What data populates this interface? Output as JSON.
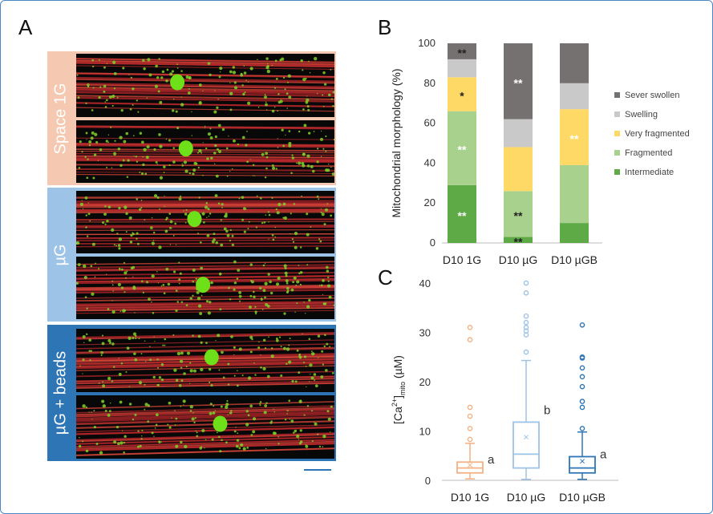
{
  "panels": {
    "a": "A",
    "b": "B",
    "c": "C"
  },
  "groups": [
    {
      "label": "Space 1G",
      "color": "#f5c9b1"
    },
    {
      "label": "µG",
      "color": "#9dc3e6"
    },
    {
      "label": "µG + beads",
      "color": "#2e75b6"
    }
  ],
  "chart_data": [
    {
      "type": "bar",
      "stacked": true,
      "ylabel": "Mitochondrial morphology (%)",
      "ylim": [
        0,
        100
      ],
      "yticks": [
        0,
        20,
        40,
        60,
        80,
        100
      ],
      "categories": [
        "D10 1G",
        "D10 µG",
        "D10 µGB"
      ],
      "series": [
        {
          "name": "Intermediate",
          "color": "#5eaa46",
          "values": [
            29,
            3,
            10
          ],
          "annotations": [
            "**",
            "**",
            ""
          ]
        },
        {
          "name": "Fragmented",
          "color": "#a9d18e",
          "values": [
            37,
            23,
            29
          ],
          "annotations": [
            "**",
            "**",
            ""
          ]
        },
        {
          "name": "Very fragmented",
          "color": "#ffd966",
          "values": [
            17,
            22,
            28
          ],
          "annotations": [
            "*",
            "",
            "**"
          ]
        },
        {
          "name": "Swelling",
          "color": "#c9c9c9",
          "values": [
            9,
            14,
            13
          ],
          "annotations": [
            "",
            "",
            ""
          ]
        },
        {
          "name": "Sever swollen",
          "color": "#767171",
          "values": [
            8,
            38,
            20
          ],
          "annotations": [
            "**",
            "**",
            ""
          ]
        }
      ],
      "legend_position": "right"
    },
    {
      "type": "box",
      "ylabel_main": "[Ca",
      "ylabel_sup": "2+",
      "ylabel_bracket": "]",
      "ylabel_sub": "mito",
      "ylabel_unit": "(µM)",
      "ylim": [
        0,
        40
      ],
      "yticks": [
        0,
        10,
        20,
        30,
        40
      ],
      "categories": [
        "D10 1G",
        "D10 µG",
        "D10 µGB"
      ],
      "series": [
        {
          "name": "D10 1G",
          "color": "#f4b183",
          "min": 0.3,
          "q1": 1.5,
          "median": 2.5,
          "q3": 3.7,
          "max": 7.5,
          "mean": 3.2,
          "outliers": [
            8.3,
            10.5,
            13,
            14.8,
            28.5,
            31
          ],
          "letter": "a"
        },
        {
          "name": "D10 µG",
          "color": "#9dc3e6",
          "min": 0.2,
          "q1": 2.5,
          "median": 5.3,
          "q3": 11.8,
          "max": 24.3,
          "mean": 8.9,
          "outliers": [
            26,
            29.5,
            30.3,
            31,
            32,
            33.3,
            38,
            40
          ],
          "letter": "b"
        },
        {
          "name": "D10 µGB",
          "color": "#2e75b6",
          "min": 0.2,
          "q1": 1.5,
          "median": 2.5,
          "q3": 4.8,
          "max": 9.8,
          "mean": 4.0,
          "outliers": [
            10.5,
            14.8,
            16,
            19,
            21,
            22.8,
            24.8,
            25,
            31.5
          ],
          "letter": "a"
        }
      ]
    }
  ]
}
